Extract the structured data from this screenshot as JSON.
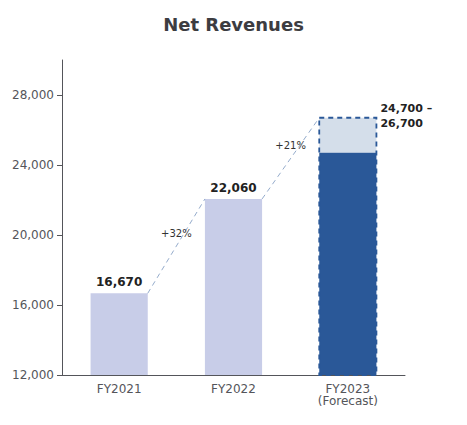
{
  "chart_data": {
    "type": "bar",
    "title": "Net Revenues",
    "categories": [
      "FY2021",
      "FY2022",
      "FY2023\n(Forecast)"
    ],
    "values": [
      16670,
      22060,
      24700
    ],
    "value_labels": [
      "16,670",
      "22,060",
      "24,700 –"
    ],
    "forecast_upper": [
      null,
      null,
      26700
    ],
    "forecast_upper_labels": [
      null,
      null,
      "26,700"
    ],
    "colors": [
      "#c8cde8",
      "#c8cde8",
      "#2a5898"
    ],
    "annotations": [
      "+32%",
      "+21%"
    ],
    "ylim": [
      12000,
      30000
    ],
    "yticks": [
      {
        "value": 12000,
        "label": "12,000"
      },
      {
        "value": 16000,
        "label": "16,000"
      },
      {
        "value": 20000,
        "label": "20,000"
      },
      {
        "value": 24000,
        "label": "24,000"
      },
      {
        "value": 28000,
        "label": "28,000"
      }
    ],
    "grid": false,
    "data_labels": true
  }
}
